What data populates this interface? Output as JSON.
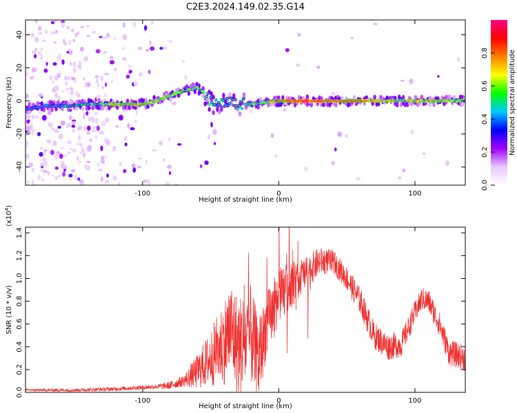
{
  "title": "C2E3.2024.149.02.35.G14",
  "chart_data": [
    {
      "type": "heatmap",
      "name": "spectrogram",
      "xlabel": "Height of straight line (km)",
      "ylabel": "Frequency (Hz)",
      "xlim": [
        -186,
        137
      ],
      "ylim": [
        -51,
        49
      ],
      "xticks": [
        -100,
        0,
        100
      ],
      "xtick_labels": [
        "-100",
        "0",
        "100"
      ],
      "yticks": [
        -40,
        -20,
        0,
        20,
        40
      ],
      "ytick_labels": [
        "-40",
        "-20",
        "0",
        "20",
        "40"
      ],
      "colorbar": {
        "label": "Normalized spectral amplitude",
        "range": [
          0,
          1
        ],
        "ticks": [
          0.0,
          0.2,
          0.4,
          0.6,
          0.8
        ],
        "tick_labels": [
          "0.0",
          "0.2",
          "0.4",
          "0.6",
          "0.8"
        ],
        "colors": [
          "#ffffff",
          "#e8c8ff",
          "#a000ff",
          "#0000ff",
          "#00c8ff",
          "#00ff00",
          "#ffff00",
          "#ff8000",
          "#ff0000",
          "#ff0080"
        ]
      },
      "ridge": [
        {
          "x": -186,
          "y": -5
        },
        {
          "x": -170,
          "y": -3
        },
        {
          "x": -150,
          "y": -3
        },
        {
          "x": -140,
          "y": -2
        },
        {
          "x": -120,
          "y": -2
        },
        {
          "x": -100,
          "y": -2
        },
        {
          "x": -90,
          "y": 0
        },
        {
          "x": -80,
          "y": 3
        },
        {
          "x": -70,
          "y": 6
        },
        {
          "x": -60,
          "y": 8
        },
        {
          "x": -55,
          "y": 5
        },
        {
          "x": -50,
          "y": -1
        },
        {
          "x": -45,
          "y": -3
        },
        {
          "x": -40,
          "y": -2
        },
        {
          "x": -35,
          "y": 0
        },
        {
          "x": -30,
          "y": -2
        },
        {
          "x": -20,
          "y": -2
        },
        {
          "x": -10,
          "y": -1
        },
        {
          "x": 0,
          "y": 0
        },
        {
          "x": 20,
          "y": 0
        },
        {
          "x": 60,
          "y": 0
        },
        {
          "x": 100,
          "y": 0
        },
        {
          "x": 137,
          "y": 0
        }
      ],
      "ridge_amplitude": [
        {
          "x": -186,
          "a": 0.45
        },
        {
          "x": -150,
          "a": 0.55
        },
        {
          "x": -120,
          "a": 0.75
        },
        {
          "x": -100,
          "a": 0.8
        },
        {
          "x": -80,
          "a": 0.7
        },
        {
          "x": -60,
          "a": 0.65
        },
        {
          "x": -40,
          "a": 0.5
        },
        {
          "x": -20,
          "a": 0.6
        },
        {
          "x": 0,
          "a": 0.85
        },
        {
          "x": 20,
          "a": 0.95
        },
        {
          "x": 50,
          "a": 0.9
        },
        {
          "x": 80,
          "a": 0.75
        },
        {
          "x": 110,
          "a": 0.8
        },
        {
          "x": 137,
          "a": 0.7
        }
      ]
    },
    {
      "type": "line",
      "name": "snr",
      "xlabel": "Height of straight line (km)",
      "ylabel": "SNR (10 * v/v)",
      "y_multiplier_label": "(x10",
      "y_multiplier_exp": "4",
      "xlim": [
        -186,
        137
      ],
      "ylim": [
        0,
        1.45
      ],
      "xticks": [
        -100,
        0,
        100
      ],
      "xtick_labels": [
        "-100",
        "0",
        "100"
      ],
      "yticks": [
        0.0,
        0.2,
        0.4,
        0.6,
        0.8,
        1.0,
        1.2,
        1.4
      ],
      "ytick_labels": [
        "0.0",
        "0.2",
        "0.4",
        "0.6",
        "0.8",
        "1.0",
        "1.2",
        "1.4"
      ],
      "color": "#f03030",
      "envelope": [
        {
          "x": -186,
          "y": 0.02
        },
        {
          "x": -150,
          "y": 0.02
        },
        {
          "x": -120,
          "y": 0.03
        },
        {
          "x": -90,
          "y": 0.05
        },
        {
          "x": -80,
          "y": 0.06
        },
        {
          "x": -70,
          "y": 0.1
        },
        {
          "x": -60,
          "y": 0.18
        },
        {
          "x": -50,
          "y": 0.3
        },
        {
          "x": -40,
          "y": 0.45
        },
        {
          "x": -35,
          "y": 0.55
        },
        {
          "x": -30,
          "y": 0.4
        },
        {
          "x": -25,
          "y": 0.45
        },
        {
          "x": -20,
          "y": 0.5
        },
        {
          "x": -15,
          "y": 0.25
        },
        {
          "x": -10,
          "y": 0.55
        },
        {
          "x": 0,
          "y": 0.85
        },
        {
          "x": 10,
          "y": 0.95
        },
        {
          "x": 20,
          "y": 1.05
        },
        {
          "x": 30,
          "y": 1.15
        },
        {
          "x": 40,
          "y": 1.15
        },
        {
          "x": 50,
          "y": 1.0
        },
        {
          "x": 60,
          "y": 0.8
        },
        {
          "x": 70,
          "y": 0.5
        },
        {
          "x": 80,
          "y": 0.4
        },
        {
          "x": 90,
          "y": 0.42
        },
        {
          "x": 100,
          "y": 0.7
        },
        {
          "x": 105,
          "y": 0.82
        },
        {
          "x": 110,
          "y": 0.8
        },
        {
          "x": 118,
          "y": 0.6
        },
        {
          "x": 125,
          "y": 0.35
        },
        {
          "x": 137,
          "y": 0.3
        }
      ],
      "noise": [
        {
          "x": -186,
          "n": 0.01
        },
        {
          "x": -90,
          "n": 0.02
        },
        {
          "x": -70,
          "n": 0.05
        },
        {
          "x": -50,
          "n": 0.25
        },
        {
          "x": -35,
          "n": 0.45
        },
        {
          "x": -20,
          "n": 0.45
        },
        {
          "x": -10,
          "n": 0.3
        },
        {
          "x": 0,
          "n": 0.25
        },
        {
          "x": 20,
          "n": 0.15
        },
        {
          "x": 40,
          "n": 0.1
        },
        {
          "x": 60,
          "n": 0.12
        },
        {
          "x": 80,
          "n": 0.12
        },
        {
          "x": 100,
          "n": 0.1
        },
        {
          "x": 137,
          "n": 0.12
        }
      ]
    }
  ]
}
